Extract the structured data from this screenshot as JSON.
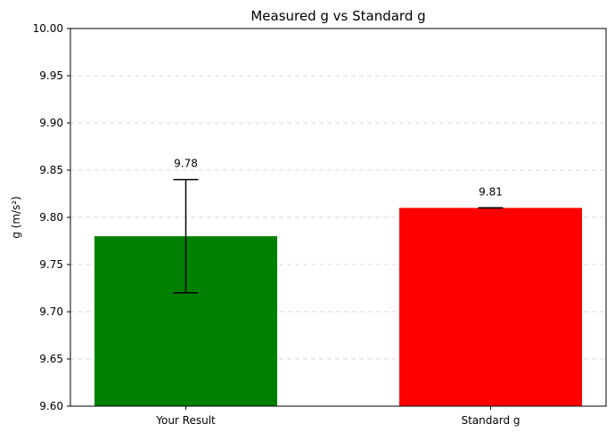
{
  "chart_data": {
    "type": "bar",
    "title": "Measured g vs Standard g",
    "xlabel": "",
    "ylabel": "g (m/s²)",
    "categories": [
      "Your Result",
      "Standard g"
    ],
    "values": [
      9.78,
      9.81
    ],
    "errors": [
      0.06,
      0.0
    ],
    "data_labels": [
      "9.78",
      "9.81"
    ],
    "colors": [
      "#008000",
      "#ff0000"
    ],
    "ylim": [
      9.6,
      10.0
    ],
    "yticks": [
      "9.60",
      "9.65",
      "9.70",
      "9.75",
      "9.80",
      "9.85",
      "9.90",
      "9.95",
      "10.00"
    ],
    "grid": "y-dashed",
    "legend": "none"
  }
}
